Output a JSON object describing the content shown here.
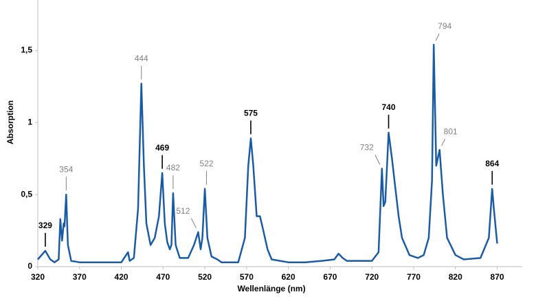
{
  "chart_data": {
    "type": "line",
    "xlabel": "Wellenlänge (nm)",
    "ylabel": "Absorption",
    "x": [
      320,
      329,
      335,
      340,
      345,
      347,
      349,
      351,
      352,
      354,
      356,
      360,
      370,
      380,
      420,
      428,
      430,
      435,
      440,
      444,
      447,
      450,
      455,
      460,
      465,
      469,
      472,
      475,
      478,
      480,
      482,
      485,
      490,
      500,
      507,
      512,
      515,
      517,
      520,
      523,
      528,
      535,
      540,
      560,
      568,
      572,
      575,
      578,
      582,
      586,
      590,
      595,
      600,
      620,
      640,
      660,
      675,
      680,
      685,
      690,
      720,
      728,
      732,
      734,
      736,
      740,
      744,
      748,
      752,
      756,
      765,
      775,
      782,
      788,
      792,
      794,
      797,
      801,
      805,
      810,
      820,
      830,
      850,
      860,
      864,
      866,
      870
    ],
    "series": [
      {
        "name": "Absorption",
        "color": "#1a5ba6",
        "values": [
          0.05,
          0.11,
          0.05,
          0.03,
          0.05,
          0.33,
          0.18,
          0.3,
          0.28,
          0.5,
          0.15,
          0.04,
          0.03,
          0.03,
          0.03,
          0.1,
          0.04,
          0.06,
          0.4,
          1.27,
          0.7,
          0.3,
          0.15,
          0.2,
          0.35,
          0.65,
          0.3,
          0.17,
          0.12,
          0.15,
          0.51,
          0.15,
          0.06,
          0.06,
          0.15,
          0.24,
          0.12,
          0.2,
          0.54,
          0.2,
          0.07,
          0.05,
          0.03,
          0.03,
          0.2,
          0.7,
          0.89,
          0.7,
          0.35,
          0.35,
          0.25,
          0.12,
          0.05,
          0.03,
          0.03,
          0.04,
          0.05,
          0.09,
          0.06,
          0.04,
          0.04,
          0.1,
          0.68,
          0.42,
          0.45,
          0.93,
          0.75,
          0.55,
          0.35,
          0.2,
          0.08,
          0.06,
          0.08,
          0.2,
          0.6,
          1.54,
          0.7,
          0.81,
          0.5,
          0.2,
          0.08,
          0.05,
          0.06,
          0.2,
          0.54,
          0.4,
          0.16
        ]
      }
    ],
    "xlim": [
      320,
      900
    ],
    "ylim": [
      0,
      1.85
    ],
    "xticks": [
      320,
      370,
      420,
      470,
      520,
      570,
      620,
      670,
      720,
      770,
      820,
      870
    ],
    "yticks": [
      0,
      {
        "value": 0.5,
        "label": "0,5"
      },
      1,
      {
        "value": 1.5,
        "label": "1,5"
      }
    ],
    "annotations": [
      {
        "x": 329,
        "y": 0.11,
        "color": "#000000",
        "anchor": "above"
      },
      {
        "x": 354,
        "y": 0.5,
        "color": "#808080",
        "anchor": "above"
      },
      {
        "x": 444,
        "y": 1.27,
        "color": "#808080",
        "anchor": "above"
      },
      {
        "x": 469,
        "y": 0.65,
        "color": "#000000",
        "anchor": "above"
      },
      {
        "x": 482,
        "y": 0.51,
        "color": "#808080",
        "anchor": "above"
      },
      {
        "x": 512,
        "y": 0.24,
        "color": "#808080",
        "anchor": "left"
      },
      {
        "x": 522,
        "y": 0.54,
        "color": "#808080",
        "anchor": "above"
      },
      {
        "x": 575,
        "y": 0.89,
        "color": "#000000",
        "anchor": "above"
      },
      {
        "x": 732,
        "y": 0.68,
        "color": "#808080",
        "anchor": "left"
      },
      {
        "x": 740,
        "y": 0.93,
        "color": "#000000",
        "anchor": "above"
      },
      {
        "x": 794,
        "y": 1.54,
        "color": "#808080",
        "anchor": "right"
      },
      {
        "x": 801,
        "y": 0.81,
        "color": "#808080",
        "anchor": "right"
      },
      {
        "x": 864,
        "y": 0.54,
        "color": "#000000",
        "anchor": "above"
      }
    ]
  }
}
